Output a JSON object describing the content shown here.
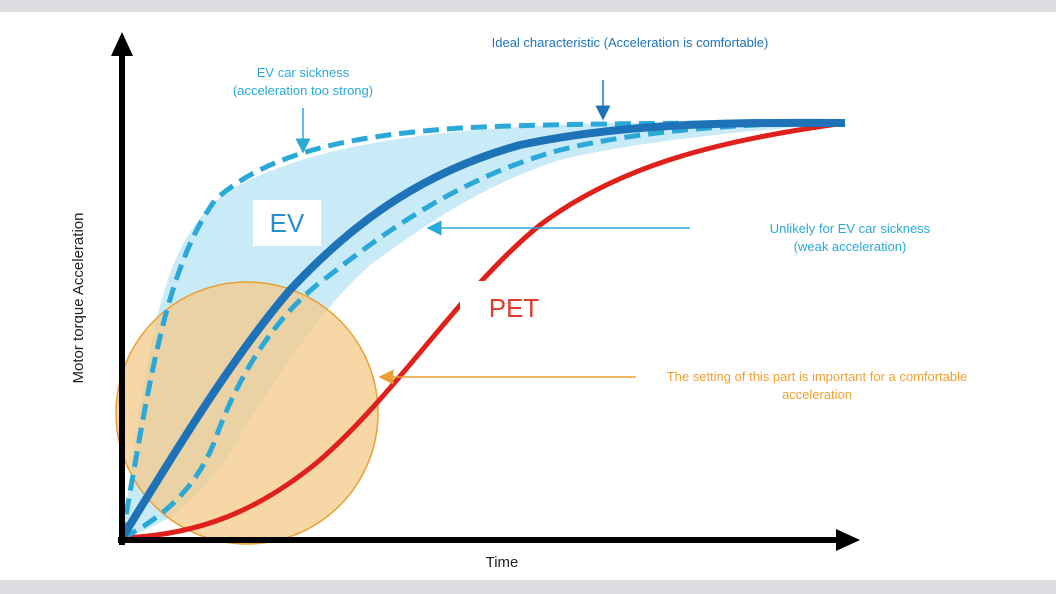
{
  "axes": {
    "x_label": "Time",
    "y_label": "Motor torque Acceleration"
  },
  "labels": {
    "ev_sickness_line1": "EV car sickness",
    "ev_sickness_line2": "(acceleration too strong)",
    "ideal": "Ideal characteristic (Acceleration is comfortable)",
    "unlikely_line1": "Unlikely for EV car sickness",
    "unlikely_line2": "(weak acceleration)",
    "setting_line1": "The setting of this part is important for a comfortable",
    "setting_line2": "acceleration",
    "ev_box": "EV",
    "pet_box": "PET"
  },
  "colors": {
    "ev_sickness_curve": "#2aa8d8",
    "ideal_curve": "#1e73b8",
    "weak_curve": "#2aa8d8",
    "pet_curve": "#e0201a",
    "band_fill": "#bfe6f6",
    "circle_fill": "#f5c98a",
    "circle_stroke": "#e8a030",
    "axis": "#000000"
  },
  "legend_items": [
    "EV",
    "PET"
  ]
}
